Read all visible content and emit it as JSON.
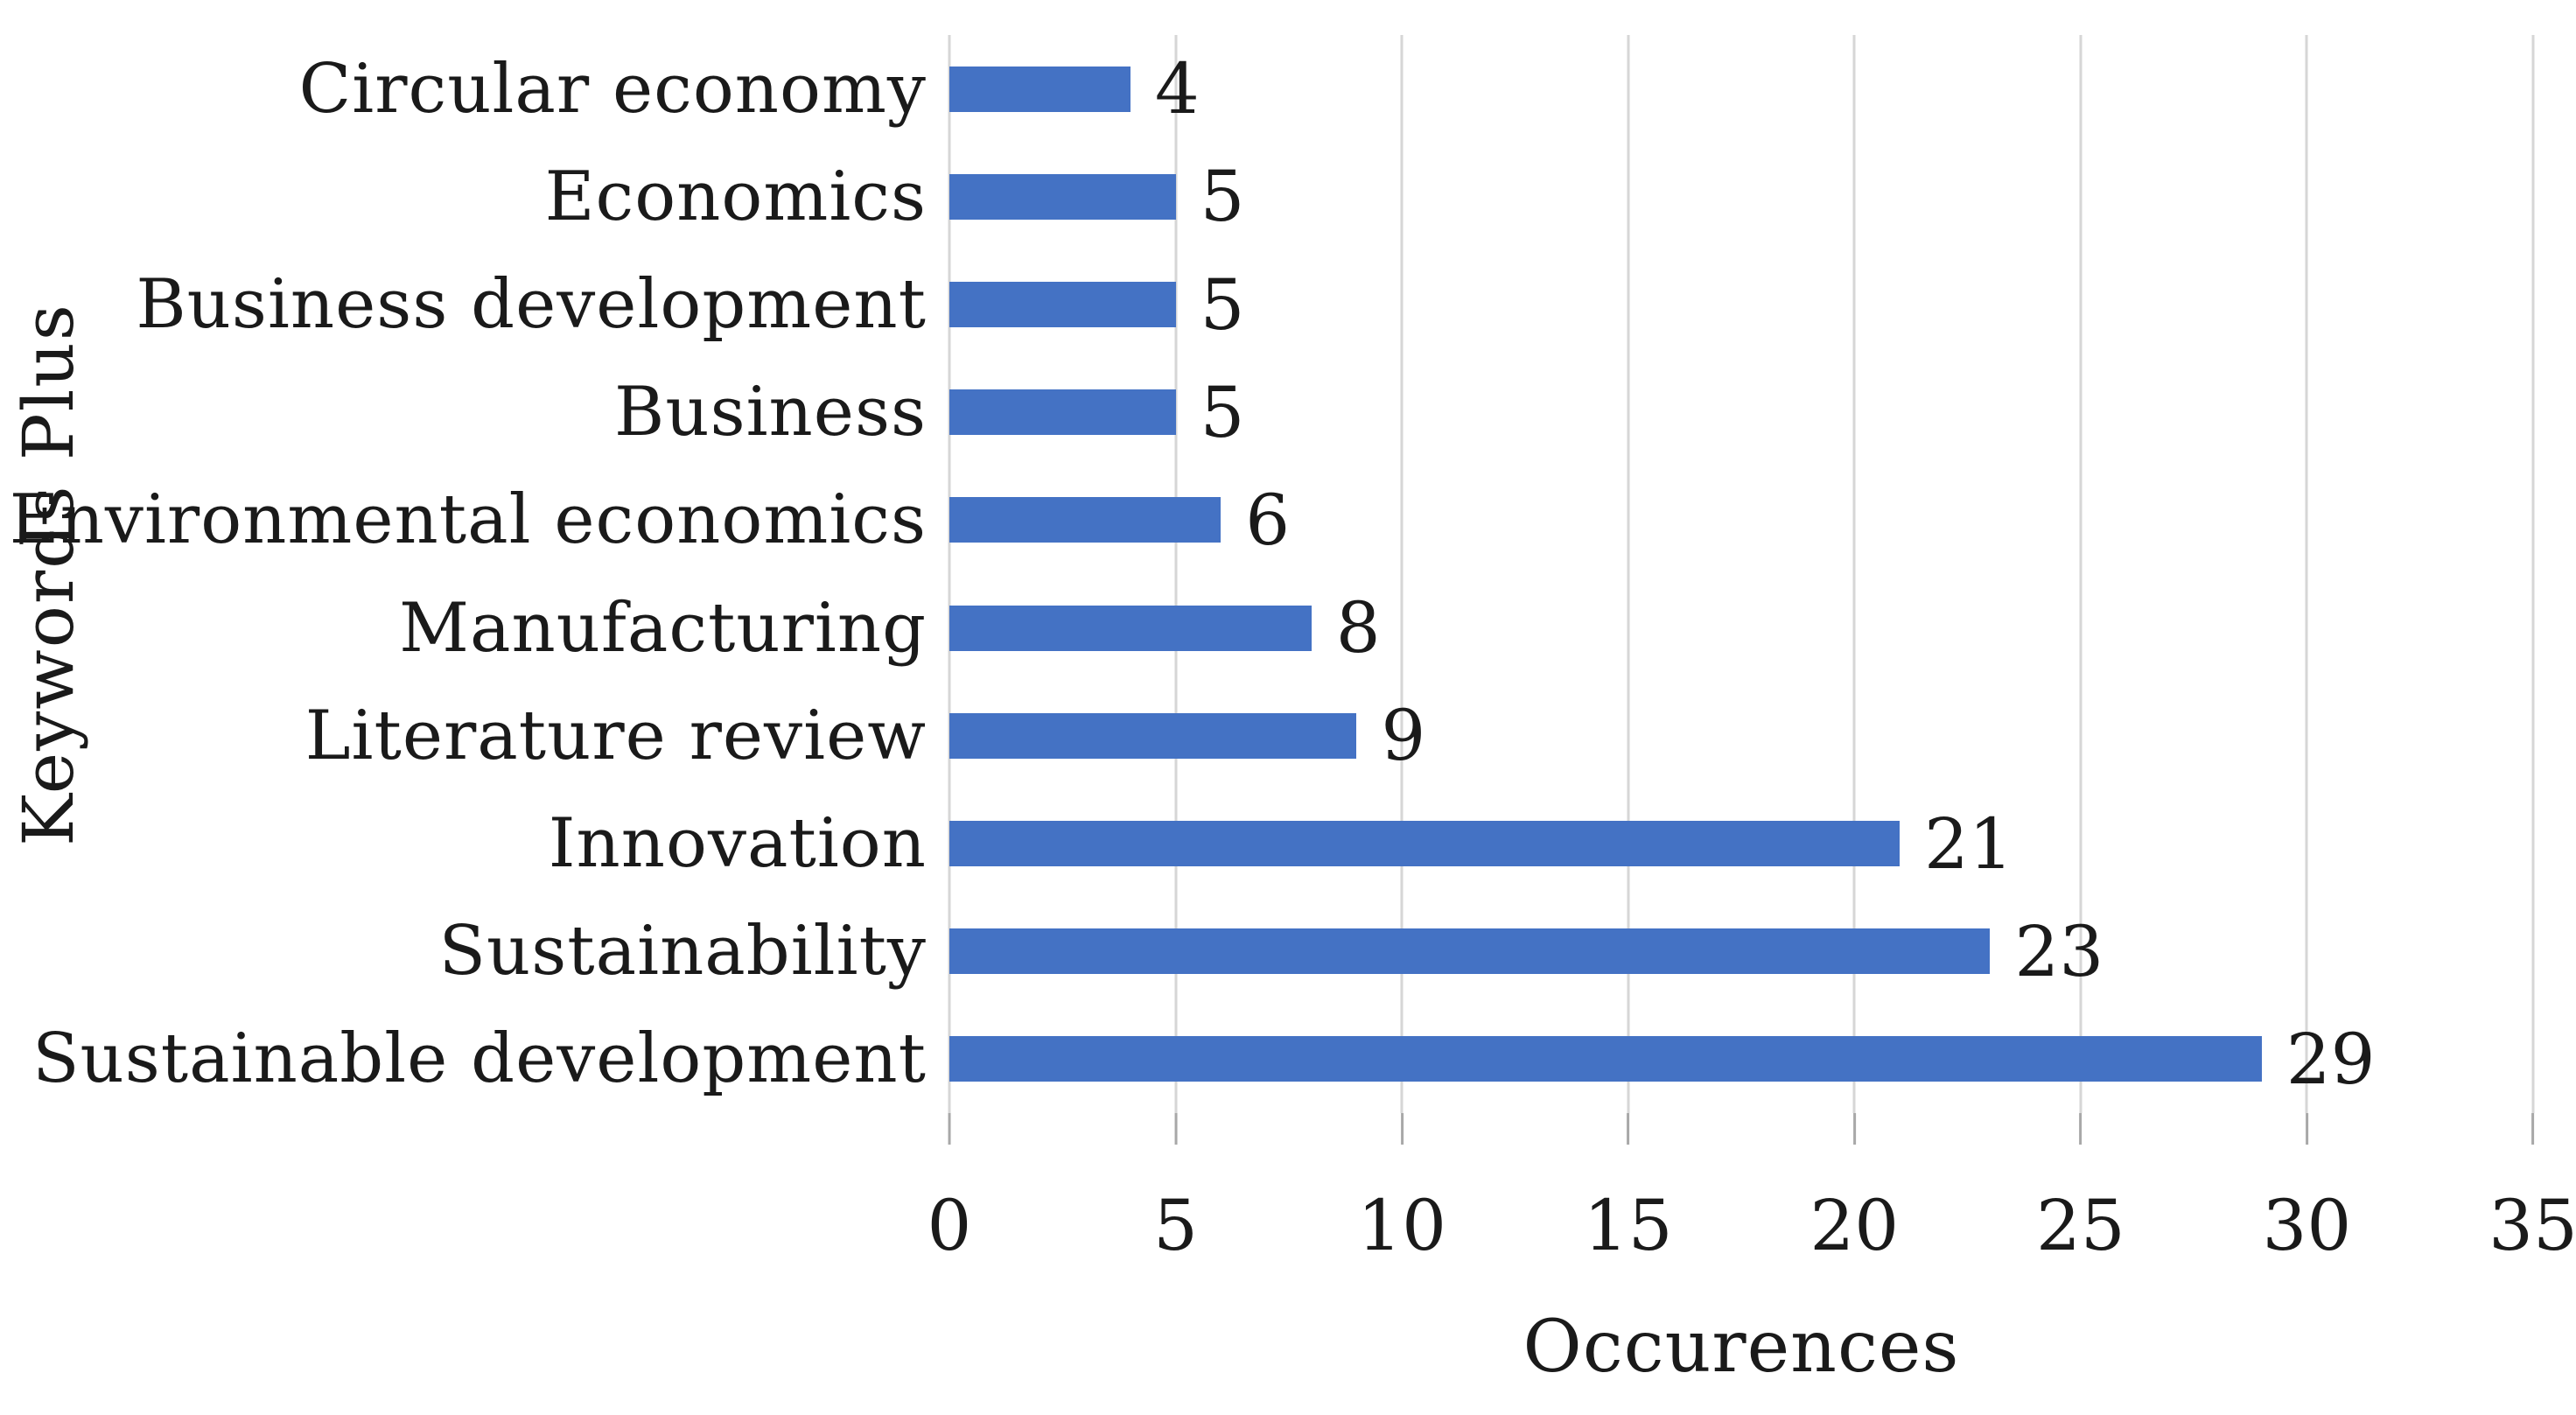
{
  "chart_data": {
    "type": "bar",
    "orientation": "horizontal",
    "title": "",
    "xlabel": "Occurences",
    "ylabel": "Keywords Plus",
    "categories": [
      "Circular economy",
      "Economics",
      "Business development",
      "Business",
      "Environmental economics",
      "Manufacturing",
      "Literature review",
      "Innovation",
      "Sustainability",
      "Sustainable development"
    ],
    "values": [
      4,
      5,
      5,
      5,
      6,
      8,
      9,
      21,
      23,
      29
    ],
    "data_labels": [
      "4",
      "5",
      "5",
      "5",
      "6",
      "8",
      "9",
      "21",
      "23",
      "29"
    ],
    "xlim": [
      0,
      35
    ],
    "xticks": [
      0,
      5,
      10,
      15,
      20,
      25,
      30,
      35
    ],
    "xtick_labels": [
      "0",
      "5",
      "10",
      "15",
      "20",
      "25",
      "30",
      "35"
    ],
    "grid": true,
    "legend": false,
    "colors": {
      "bar": "#4472c4",
      "gridline": "#d6d6d6",
      "tick_mark": "#a8a8a8",
      "text": "#1a1a1a",
      "background": "#ffffff"
    }
  }
}
